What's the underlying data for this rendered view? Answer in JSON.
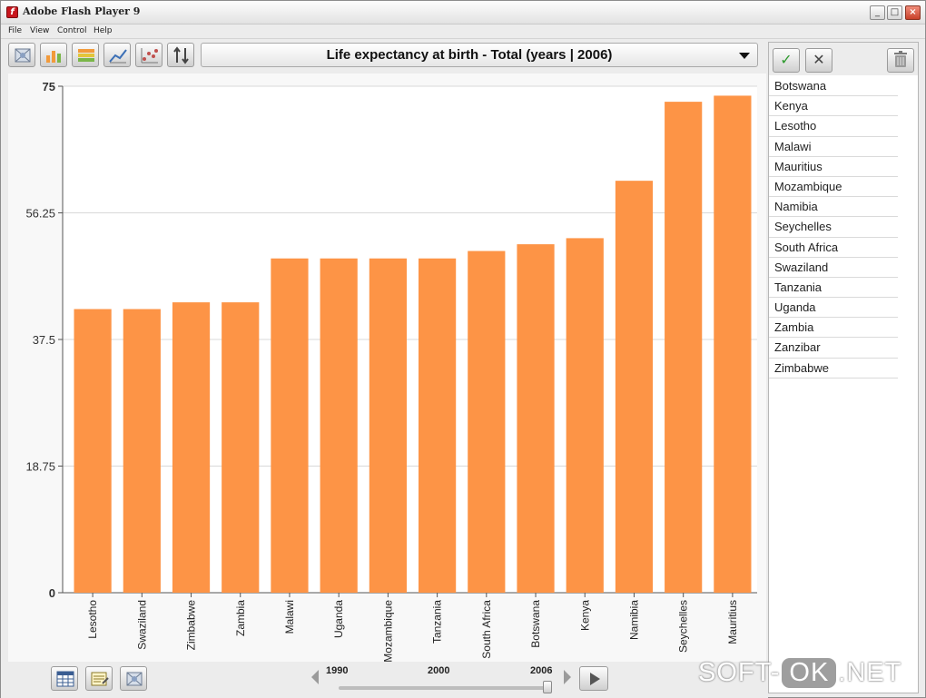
{
  "window": {
    "title": "Adobe Flash Player 9"
  },
  "menu": [
    "File",
    "View",
    "Control",
    "Help"
  ],
  "toolbar": {
    "icons": [
      "map-view-icon",
      "bar-chart-icon",
      "stacked-bar-icon",
      "line-chart-icon",
      "scatter-chart-icon",
      "sort-icon"
    ]
  },
  "indicator": {
    "selected": "Life expectancy at birth - Total (years | 2006)"
  },
  "side_panel": {
    "icons": [
      "checkmark-icon",
      "clear-icon",
      "trash-icon"
    ],
    "countries": [
      "Botswana",
      "Kenya",
      "Lesotho",
      "Malawi",
      "Mauritius",
      "Mozambique",
      "Namibia",
      "Seychelles",
      "South Africa",
      "Swaziland",
      "Tanzania",
      "Uganda",
      "Zambia",
      "Zanzibar",
      "Zimbabwe"
    ]
  },
  "timeline": {
    "years": [
      "1990",
      "2000",
      "2006"
    ],
    "selected_year": "2006",
    "start": 1990,
    "end": 2006
  },
  "bottom_icons": [
    "table-view-icon",
    "data-edit-icon",
    "map-view-icon"
  ],
  "watermark": {
    "left": "SOFT-",
    "ok": "OK",
    "right": ".NET"
  },
  "colors": {
    "bar": "#fd9446",
    "grid": "#d8d8d8"
  },
  "chart_data": {
    "type": "bar",
    "title": "Life expectancy at birth - Total (years | 2006)",
    "categories": [
      "Lesotho",
      "Swaziland",
      "Zimbabwe",
      "Zambia",
      "Malawi",
      "Uganda",
      "Mozambique",
      "Tanzania",
      "South Africa",
      "Botswana",
      "Kenya",
      "Namibia",
      "Seychelles",
      "Mauritius"
    ],
    "values": [
      42.0,
      42.0,
      43.0,
      43.0,
      49.5,
      49.5,
      49.5,
      49.5,
      50.6,
      51.6,
      52.5,
      61.0,
      72.7,
      73.6
    ],
    "yticks": [
      0,
      18.75,
      37.5,
      56.25,
      75
    ],
    "ylim": [
      0,
      75
    ],
    "grid": true,
    "legend": "none"
  }
}
